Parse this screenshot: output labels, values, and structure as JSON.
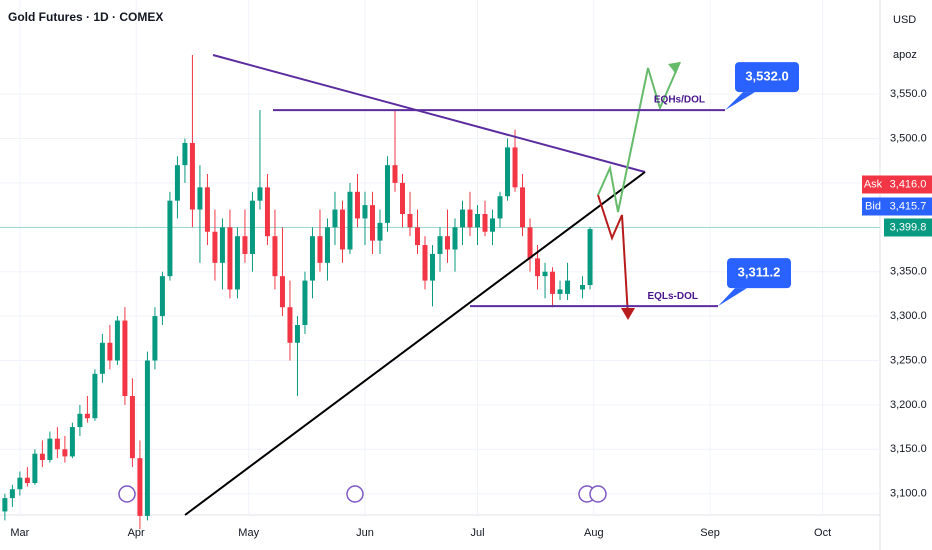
{
  "chart_data": {
    "type": "candlestick",
    "title": "Gold Futures · 1D · COMEX",
    "currency": "USD",
    "scale_label": "apoz",
    "up_color": "#089981",
    "down_color": "#f23645",
    "x": [
      -4,
      -2,
      0,
      2,
      4,
      6,
      8,
      10,
      12,
      14,
      16,
      18,
      20,
      22,
      24,
      26,
      28,
      30,
      32,
      34,
      36,
      38,
      40,
      42,
      44,
      46,
      48,
      50,
      52,
      54,
      56,
      58,
      60,
      62,
      64,
      66,
      68,
      70,
      72,
      74,
      76,
      78,
      80,
      82,
      84,
      86,
      88,
      90,
      92,
      94,
      96,
      98,
      100,
      102,
      104,
      106,
      108,
      110,
      112,
      114,
      116,
      118,
      120,
      122,
      124,
      126,
      128,
      130,
      132,
      134,
      136,
      138,
      140,
      142,
      144,
      146,
      150,
      152
    ],
    "open": [
      3080,
      3095,
      3105,
      3118,
      3112,
      3145,
      3138,
      3162,
      3150,
      3142,
      3175,
      3190,
      3185,
      3235,
      3270,
      3250,
      3295,
      3210,
      3140,
      3075,
      3250,
      3300,
      3345,
      3430,
      3470,
      3495,
      3420,
      3445,
      3395,
      3360,
      3400,
      3330,
      3390,
      3370,
      3430,
      3445,
      3390,
      3345,
      3310,
      3270,
      3290,
      3340,
      3390,
      3360,
      3400,
      3420,
      3375,
      3440,
      3410,
      3425,
      3385,
      3405,
      3470,
      3450,
      3415,
      3400,
      3380,
      3340,
      3370,
      3390,
      3375,
      3400,
      3420,
      3400,
      3415,
      3395,
      3410,
      3435,
      3490,
      3445,
      3400,
      3365,
      3345,
      3350,
      3325,
      3325,
      3330,
      3335
    ],
    "high": [
      3100,
      3110,
      3125,
      3130,
      3150,
      3160,
      3170,
      3175,
      3165,
      3180,
      3200,
      3210,
      3240,
      3280,
      3290,
      3300,
      3310,
      3230,
      3160,
      3260,
      3310,
      3350,
      3440,
      3480,
      3500,
      3594,
      3470,
      3460,
      3420,
      3410,
      3420,
      3400,
      3420,
      3440,
      3532,
      3460,
      3420,
      3400,
      3340,
      3300,
      3350,
      3400,
      3420,
      3410,
      3440,
      3430,
      3450,
      3460,
      3440,
      3440,
      3420,
      3480,
      3532,
      3460,
      3440,
      3420,
      3390,
      3380,
      3400,
      3420,
      3410,
      3430,
      3440,
      3425,
      3430,
      3420,
      3440,
      3500,
      3510,
      3460,
      3410,
      3380,
      3360,
      3355,
      3340,
      3360,
      3345,
      3400
    ],
    "low": [
      3070,
      3085,
      3098,
      3108,
      3110,
      3130,
      3135,
      3140,
      3135,
      3140,
      3165,
      3180,
      3182,
      3225,
      3240,
      3245,
      3200,
      3130,
      3060,
      3070,
      3240,
      3290,
      3340,
      3410,
      3450,
      3400,
      3360,
      3380,
      3340,
      3330,
      3320,
      3320,
      3360,
      3350,
      3420,
      3380,
      3330,
      3300,
      3250,
      3210,
      3280,
      3320,
      3350,
      3340,
      3380,
      3360,
      3370,
      3400,
      3380,
      3370,
      3370,
      3395,
      3440,
      3400,
      3390,
      3370,
      3330,
      3311,
      3350,
      3360,
      3350,
      3380,
      3390,
      3380,
      3390,
      3380,
      3400,
      3430,
      3440,
      3390,
      3350,
      3330,
      3320,
      3310,
      3318,
      3318,
      3320,
      3330
    ],
    "close": [
      3095,
      3105,
      3118,
      3112,
      3145,
      3138,
      3162,
      3150,
      3142,
      3175,
      3190,
      3185,
      3235,
      3270,
      3250,
      3295,
      3210,
      3140,
      3075,
      3250,
      3300,
      3345,
      3430,
      3470,
      3495,
      3420,
      3445,
      3395,
      3360,
      3400,
      3330,
      3390,
      3370,
      3430,
      3445,
      3390,
      3345,
      3310,
      3270,
      3290,
      3340,
      3390,
      3360,
      3400,
      3420,
      3375,
      3440,
      3410,
      3425,
      3385,
      3405,
      3470,
      3450,
      3415,
      3400,
      3380,
      3340,
      3370,
      3390,
      3375,
      3400,
      3420,
      3400,
      3415,
      3395,
      3410,
      3435,
      3490,
      3445,
      3400,
      3365,
      3345,
      3350,
      3325,
      3330,
      3340,
      3335,
      3398
    ],
    "xlim": [
      -5.3,
      229.3
    ],
    "xticks": [
      {
        "value": 0,
        "label": "Mar"
      },
      {
        "value": 31,
        "label": "Apr"
      },
      {
        "value": 61,
        "label": "May"
      },
      {
        "value": 92,
        "label": "Jun"
      },
      {
        "value": 122,
        "label": "Jul"
      },
      {
        "value": 153,
        "label": "Aug"
      },
      {
        "value": 184,
        "label": "Sep"
      },
      {
        "value": 214,
        "label": "Oct"
      }
    ],
    "ylim": [
      3076,
      3656
    ],
    "yticks": [
      {
        "value": 3100,
        "label": "3,100.0"
      },
      {
        "value": 3150,
        "label": "3,150.0"
      },
      {
        "value": 3200,
        "label": "3,200.0"
      },
      {
        "value": 3250,
        "label": "3,250.0"
      },
      {
        "value": 3300,
        "label": "3,300.0"
      },
      {
        "value": 3350,
        "label": "3,350.0"
      },
      {
        "value": 3400,
        "label": "3,400.0"
      },
      {
        "value": 3450,
        "label": "3,450.0"
      },
      {
        "value": 3500,
        "label": "3,500.0"
      },
      {
        "value": 3550,
        "label": "3,550.0"
      }
    ],
    "ask": {
      "name": "Ask",
      "value": 3416.0,
      "label": "3,416.0"
    },
    "bid": {
      "name": "Bid",
      "value": 3415.7,
      "label": "3,415.7"
    },
    "last_price": {
      "value": 3399.8,
      "label": "3,399.8"
    },
    "levels": [
      {
        "name": "EQHs/DOL",
        "value": 3532.0,
        "label": "3,532.0"
      },
      {
        "name": "EQLs-DOL",
        "value": 3311.2,
        "label": "3,311.2"
      }
    ]
  }
}
